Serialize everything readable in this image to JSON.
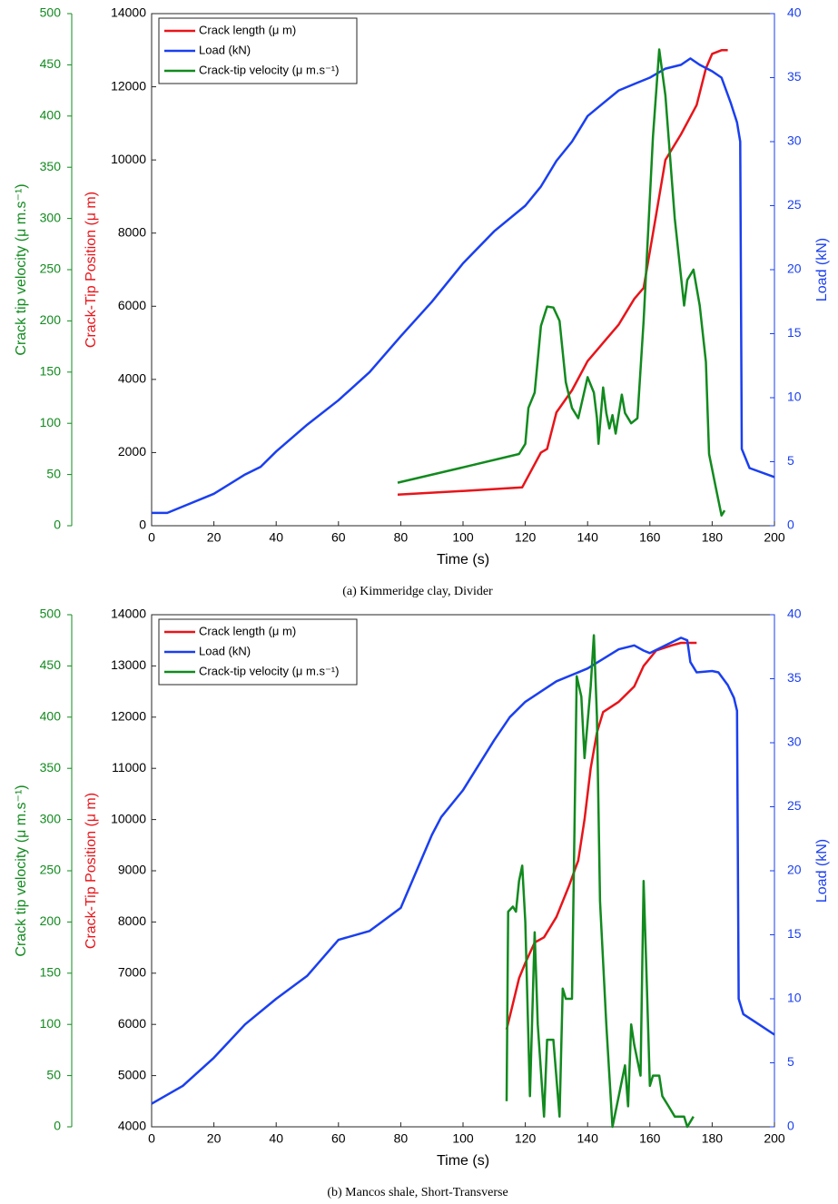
{
  "chart_data": [
    {
      "type": "line",
      "caption": "(a) Kimmeridge clay, Divider",
      "xlabel": "Time (s)",
      "ylabel": "Crack-Tip Position (μ m)",
      "y2label": "Load (kN)",
      "y3label": "Crack tip velocity (μ m.s⁻¹)",
      "xlim": [
        0,
        200
      ],
      "xticks": [
        0,
        20,
        40,
        60,
        80,
        100,
        120,
        140,
        160,
        180,
        200
      ],
      "ylim": [
        0,
        14000
      ],
      "yticks": [
        0,
        2000,
        4000,
        6000,
        8000,
        10000,
        12000,
        14000
      ],
      "y2lim": [
        0,
        40
      ],
      "y2ticks": [
        0,
        5,
        10,
        15,
        20,
        25,
        30,
        35,
        40
      ],
      "y3lim": [
        0,
        500
      ],
      "y3ticks": [
        0,
        50,
        100,
        150,
        200,
        250,
        300,
        350,
        400,
        450,
        500
      ],
      "legend": "upper left",
      "series": [
        {
          "name": "Crack length (μ m)",
          "color": "#e8141a",
          "axis": "y",
          "x": [
            79,
            100,
            119,
            125,
            127,
            130,
            135,
            140,
            145,
            150,
            155,
            158,
            162,
            165,
            170,
            175,
            178,
            180,
            183,
            185
          ],
          "values": [
            850,
            950,
            1050,
            2000,
            2100,
            3100,
            3700,
            4500,
            5000,
            5500,
            6200,
            6500,
            8500,
            10000,
            10700,
            11500,
            12500,
            12900,
            13000,
            13000
          ]
        },
        {
          "name": "Load (kN)",
          "color": "#1a3ff0",
          "axis": "y2",
          "x": [
            0,
            5,
            10,
            20,
            30,
            35,
            40,
            50,
            60,
            70,
            80,
            90,
            100,
            110,
            120,
            125,
            130,
            135,
            140,
            145,
            150,
            155,
            160,
            165,
            170,
            173,
            176,
            180,
            183,
            186,
            188,
            189,
            189.5,
            192,
            200
          ],
          "values": [
            1.0,
            1.0,
            1.5,
            2.5,
            4,
            4.6,
            5.8,
            7.9,
            9.8,
            12,
            14.8,
            17.5,
            20.5,
            23,
            25,
            26.5,
            28.5,
            30,
            32,
            33,
            34,
            34.5,
            35,
            35.7,
            36,
            36.5,
            36,
            35.5,
            35,
            33,
            31.5,
            30,
            6,
            4.5,
            3.8
          ]
        },
        {
          "name": "Crack-tip velocity (μ m.s⁻¹)",
          "color": "#118a1e",
          "axis": "y3",
          "x": [
            79,
            100,
            118,
            120,
            121,
            123,
            125,
            127,
            129,
            131,
            133,
            135,
            137,
            140,
            142,
            143,
            143.5,
            145,
            146,
            147,
            148,
            149,
            151,
            152,
            154,
            156,
            158,
            161,
            163,
            165,
            168,
            171,
            172,
            174,
            176,
            178,
            179,
            181,
            183,
            184
          ],
          "values": [
            42,
            57,
            70,
            80,
            115,
            130,
            195,
            214,
            213,
            200,
            140,
            115,
            105,
            145,
            130,
            105,
            80,
            135,
            110,
            95,
            108,
            90,
            128,
            110,
            100,
            105,
            200,
            380,
            465,
            420,
            300,
            215,
            240,
            250,
            215,
            160,
            70,
            40,
            10,
            15
          ]
        }
      ]
    },
    {
      "type": "line",
      "caption": "(b) Mancos shale, Short-Transverse",
      "xlabel": "Time (s)",
      "ylabel": "Crack-Tip Position (μ m)",
      "y2label": "Load (kN)",
      "y3label": "Crack tip velocity (μ m.s⁻¹)",
      "xlim": [
        0,
        200
      ],
      "xticks": [
        0,
        20,
        40,
        60,
        80,
        100,
        120,
        140,
        160,
        180,
        200
      ],
      "ylim": [
        4000,
        14000
      ],
      "yticks": [
        4000,
        5000,
        6000,
        7000,
        8000,
        9000,
        10000,
        11000,
        12000,
        13000,
        14000
      ],
      "y2lim": [
        0,
        40
      ],
      "y2ticks": [
        0,
        5,
        10,
        15,
        20,
        25,
        30,
        35,
        40
      ],
      "y3lim": [
        0,
        500
      ],
      "y3ticks": [
        0,
        50,
        100,
        150,
        200,
        250,
        300,
        350,
        400,
        450,
        500
      ],
      "legend": "upper left",
      "series": [
        {
          "name": "Crack length (μ m)",
          "color": "#e8141a",
          "axis": "y",
          "x": [
            114,
            116,
            118,
            120,
            123,
            126,
            130,
            134,
            137,
            139,
            141,
            143,
            145,
            150,
            155,
            158,
            162,
            167,
            170,
            175
          ],
          "values": [
            5900,
            6400,
            6900,
            7200,
            7600,
            7700,
            8100,
            8700,
            9200,
            10000,
            11000,
            11700,
            12100,
            12300,
            12600,
            13000,
            13300,
            13400,
            13450,
            13450
          ]
        },
        {
          "name": "Load (kN)",
          "color": "#1a3ff0",
          "axis": "y2",
          "x": [
            0,
            10,
            20,
            30,
            40,
            50,
            60,
            70,
            80,
            90,
            93,
            100,
            110,
            115,
            120,
            125,
            130,
            140,
            150,
            155,
            158,
            160,
            165,
            170,
            172,
            173,
            175,
            180,
            182,
            185,
            187,
            188,
            188.5,
            190,
            195,
            200
          ],
          "values": [
            1.8,
            3.2,
            5.4,
            8,
            10,
            11.8,
            14.6,
            15.3,
            17.1,
            22.8,
            24.2,
            26.3,
            30.2,
            32,
            33.2,
            34,
            34.8,
            35.8,
            37.3,
            37.6,
            37.2,
            37.0,
            37.6,
            38.2,
            38.0,
            36.3,
            35.5,
            35.6,
            35.5,
            34.5,
            33.5,
            32.5,
            10,
            8.8,
            8,
            7.2
          ]
        },
        {
          "name": "Crack-tip velocity (μ m.s⁻¹)",
          "color": "#118a1e",
          "axis": "y3",
          "x": [
            114,
            114.5,
            116,
            117,
            118,
            119,
            120,
            121.5,
            123,
            124,
            126,
            127,
            129,
            131,
            132,
            133,
            135,
            136.5,
            138,
            139,
            141,
            142,
            143,
            144,
            146,
            148,
            150,
            152,
            153,
            154,
            155,
            157,
            158,
            159,
            160,
            161,
            163,
            164,
            166,
            168,
            171,
            172,
            174
          ],
          "values": [
            25,
            210,
            215,
            210,
            240,
            255,
            200,
            30,
            190,
            100,
            10,
            85,
            85,
            10,
            135,
            125,
            125,
            440,
            420,
            360,
            430,
            480,
            400,
            220,
            100,
            0,
            30,
            60,
            20,
            100,
            80,
            50,
            240,
            140,
            40,
            50,
            50,
            30,
            20,
            10,
            10,
            0,
            10
          ]
        }
      ]
    }
  ]
}
